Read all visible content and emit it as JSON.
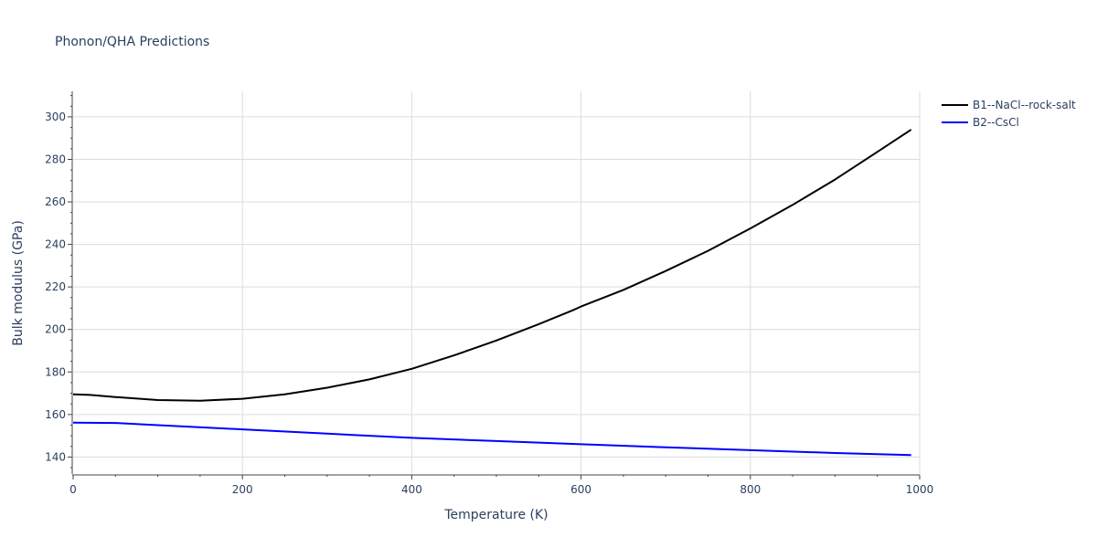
{
  "chart_data": {
    "type": "line",
    "title": "Phonon/QHA Predictions",
    "xlabel": "Temperature (K)",
    "ylabel": "Bulk modulus (GPa)",
    "xlim": [
      0,
      1000
    ],
    "ylim": [
      132,
      312
    ],
    "x_ticks": [
      0,
      200,
      400,
      600,
      800,
      1000
    ],
    "y_ticks": [
      140,
      160,
      180,
      200,
      220,
      240,
      260,
      280,
      300
    ],
    "grid": true,
    "legend_position": "top-right",
    "series": [
      {
        "name": "B1--NaCl--rock-salt",
        "color": "#000000",
        "x": [
          0,
          20,
          50,
          100,
          150,
          200,
          250,
          300,
          350,
          400,
          450,
          500,
          550,
          590,
          600,
          650,
          700,
          750,
          800,
          850,
          900,
          950,
          990
        ],
        "y": [
          169.5,
          169.2,
          168.2,
          166.8,
          166.5,
          167.4,
          169.5,
          172.6,
          176.5,
          181.5,
          187.8,
          194.8,
          202.5,
          209.0,
          210.8,
          218.6,
          227.5,
          237.0,
          247.5,
          258.6,
          270.5,
          283.5,
          294.0
        ]
      },
      {
        "name": "B2--CsCl",
        "color": "#0000ff",
        "x": [
          0,
          50,
          100,
          200,
          300,
          400,
          500,
          600,
          700,
          800,
          900,
          990
        ],
        "y": [
          156.2,
          156.0,
          155.0,
          153.0,
          151.0,
          149.0,
          147.5,
          146.0,
          144.6,
          143.2,
          141.9,
          140.9
        ]
      }
    ]
  }
}
